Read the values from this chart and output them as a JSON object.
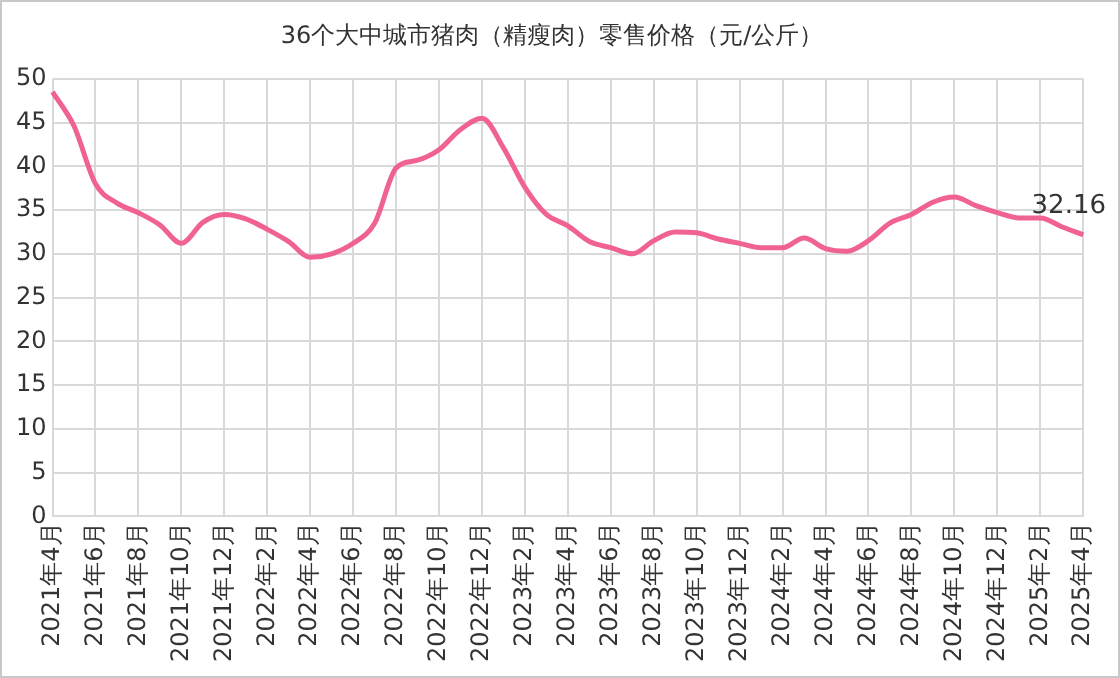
{
  "chart_data": {
    "type": "line",
    "title": "36个大中城市猪肉（精瘦肉）零售价格（元/公斤）",
    "categories": [
      "2021年4月",
      null,
      "2021年6月",
      null,
      "2021年8月",
      null,
      "2021年10月",
      null,
      "2021年12月",
      null,
      "2022年2月",
      null,
      "2022年4月",
      null,
      "2022年6月",
      null,
      "2022年8月",
      null,
      "2022年10月",
      null,
      "2022年12月",
      null,
      "2023年2月",
      null,
      "2023年4月",
      null,
      "2023年6月",
      null,
      "2023年8月",
      null,
      "2023年10月",
      null,
      "2023年12月",
      null,
      "2024年2月",
      null,
      "2024年4月",
      null,
      "2024年6月",
      null,
      "2024年8月",
      null,
      "2024年10月",
      null,
      "2024年12月",
      null,
      "2025年2月",
      null,
      "2025年4月"
    ],
    "series": [
      {
        "color": "#f06292",
        "values": [
          48.5,
          44.6,
          38.0,
          35.8,
          34.7,
          33.3,
          31.2,
          33.6,
          34.5,
          34.0,
          32.8,
          31.4,
          29.6,
          30.0,
          31.2,
          33.5,
          39.8,
          40.7,
          41.9,
          44.2,
          45.5,
          42.1,
          37.6,
          34.5,
          33.2,
          31.4,
          30.7,
          30.0,
          31.5,
          32.5,
          32.4,
          31.7,
          31.2,
          30.7,
          30.7,
          31.8,
          30.6,
          30.3,
          31.5,
          33.5,
          34.5,
          35.9,
          36.5,
          35.5,
          34.7,
          34.1,
          34.1,
          33.1,
          32.16
        ],
        "value_labels": [
          null,
          null,
          null,
          null,
          null,
          null,
          null,
          null,
          null,
          null,
          null,
          null,
          null,
          null,
          null,
          null,
          null,
          null,
          null,
          null,
          null,
          null,
          null,
          null,
          null,
          null,
          null,
          null,
          null,
          null,
          null,
          null,
          null,
          null,
          null,
          null,
          null,
          null,
          null,
          null,
          null,
          null,
          null,
          null,
          null,
          null,
          null,
          null,
          "32.16"
        ]
      }
    ],
    "ylim": [
      0,
      50
    ],
    "yticks": [
      0,
      5,
      10,
      15,
      20,
      25,
      30,
      35,
      40,
      45,
      50
    ],
    "grid": true,
    "marker": "none"
  }
}
